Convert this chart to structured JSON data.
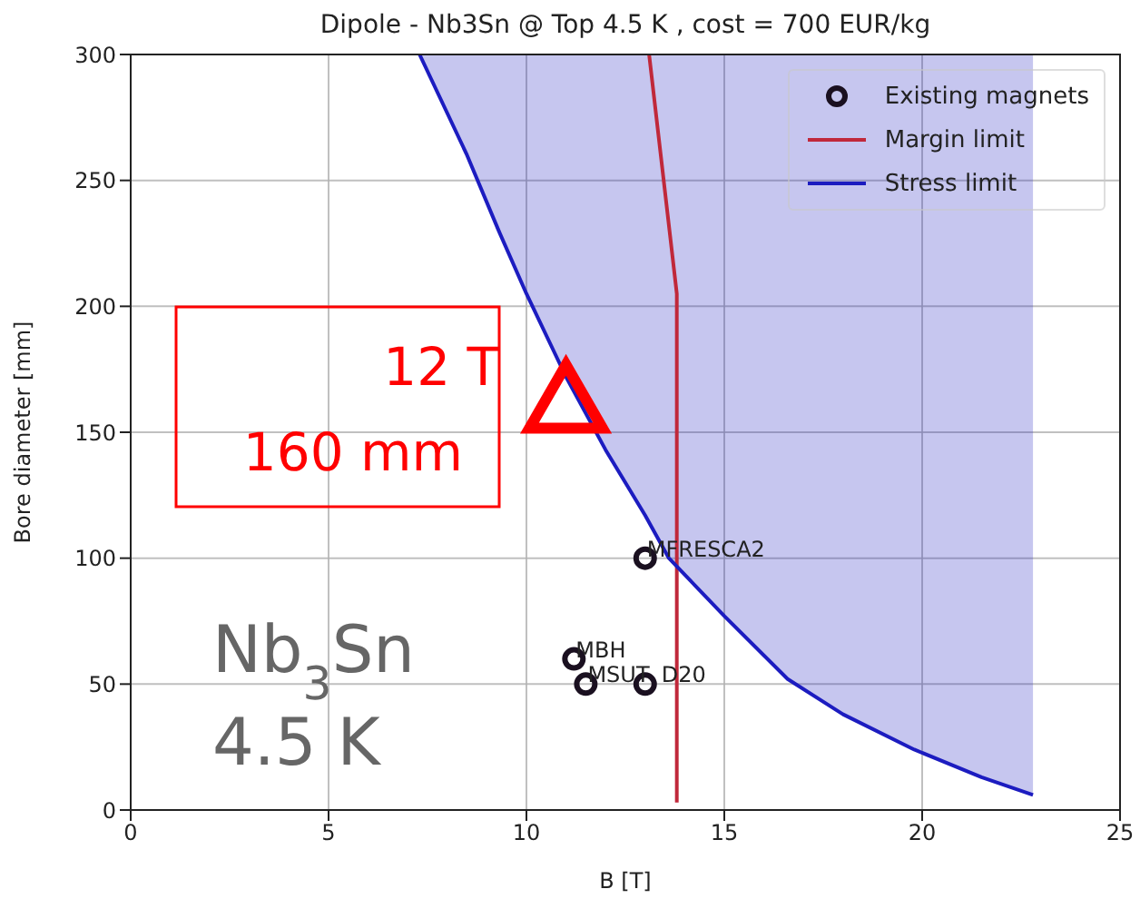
{
  "chart_data": {
    "type": "line",
    "title": "Dipole - Nb3Sn @ Top 4.5 K , cost = 700 EUR/kg",
    "xlabel": "B [T]",
    "ylabel": "Bore diameter [mm]",
    "xlim": [
      0,
      25
    ],
    "ylim": [
      0,
      300
    ],
    "xticks": [
      0,
      5,
      10,
      15,
      20,
      25
    ],
    "yticks": [
      0,
      50,
      100,
      150,
      200,
      250,
      300
    ],
    "grid": true,
    "legend": "top right",
    "series": [
      {
        "name": "Existing magnets",
        "type": "scatter",
        "color": "#1a1020",
        "marker": "circle",
        "x": [
          13.0,
          11.2,
          11.5,
          13.0
        ],
        "values": [
          100,
          60,
          50,
          50
        ]
      },
      {
        "name": "Margin limit",
        "color": "#c0283a",
        "line_style": "solid",
        "marker": "none",
        "x": [
          13.1,
          13.8,
          13.8
        ],
        "values": [
          300,
          205,
          3
        ]
      },
      {
        "name": "Stress limit",
        "color": "#1c1cc0",
        "line_style": "solid",
        "marker": "none",
        "x": [
          7.3,
          8.5,
          9.3,
          10.0,
          11.0,
          12.0,
          13.0,
          13.6,
          15.0,
          16.6,
          18.0,
          19.8,
          21.5,
          22.8
        ],
        "values": [
          300,
          260,
          230,
          205,
          172,
          143,
          117,
          100,
          77,
          52,
          38,
          24,
          13,
          6
        ],
        "lower": [
          300,
          260,
          230,
          205,
          172,
          143,
          117,
          100,
          77,
          52,
          38,
          24,
          13,
          6
        ],
        "upper": [
          300,
          300,
          300,
          300,
          300,
          300,
          300,
          300,
          300,
          300,
          300,
          300,
          300,
          300
        ]
      },
      {
        "type": "scatter",
        "color": "#ff0000",
        "marker": "triangle",
        "x": [
          11.0
        ],
        "values": [
          160
        ]
      }
    ],
    "annotations": [
      {
        "text": "MFRESCA2",
        "x": 13.0,
        "y": 100
      },
      {
        "text": "MBH",
        "x": 11.2,
        "y": 60
      },
      {
        "text": "MSUT",
        "x": 11.5,
        "y": 50
      },
      {
        "text": "D20",
        "x": 13.0,
        "y": 50
      },
      "12 T",
      "160 mm",
      "Nb$_{3}$Sn",
      "4.5 K"
    ]
  }
}
